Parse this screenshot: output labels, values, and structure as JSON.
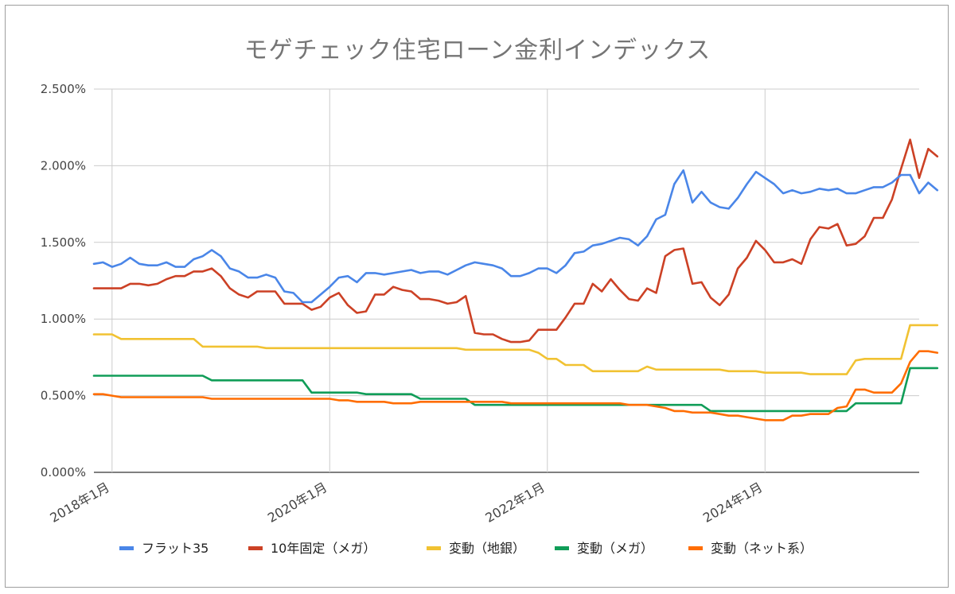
{
  "chart_data": {
    "type": "line",
    "title": "モゲチェック住宅ローン金利インデックス",
    "xlabel": "",
    "ylabel": "",
    "x_start": "2017-11",
    "x_end": "2025-06",
    "ylim": [
      0,
      2.5
    ],
    "yticks": [
      "0.000%",
      "0.500%",
      "1.000%",
      "1.500%",
      "2.000%",
      "2.500%"
    ],
    "xticks": [
      {
        "label": "2018年1月",
        "date": "2018-01"
      },
      {
        "label": "2020年1月",
        "date": "2020-01"
      },
      {
        "label": "2022年1月",
        "date": "2022-01"
      },
      {
        "label": "2024年1月",
        "date": "2024-01"
      }
    ],
    "grid": true,
    "legend_position": "bottom",
    "series": [
      {
        "name": "フラット35",
        "color": "#4a86e8",
        "values": [
          1.36,
          1.37,
          1.34,
          1.36,
          1.4,
          1.36,
          1.35,
          1.35,
          1.37,
          1.34,
          1.34,
          1.39,
          1.41,
          1.45,
          1.41,
          1.33,
          1.31,
          1.27,
          1.27,
          1.29,
          1.27,
          1.18,
          1.17,
          1.11,
          1.11,
          1.16,
          1.21,
          1.27,
          1.28,
          1.24,
          1.3,
          1.3,
          1.29,
          1.3,
          1.31,
          1.32,
          1.3,
          1.31,
          1.31,
          1.29,
          1.32,
          1.35,
          1.37,
          1.36,
          1.35,
          1.33,
          1.28,
          1.28,
          1.3,
          1.33,
          1.33,
          1.3,
          1.35,
          1.43,
          1.44,
          1.48,
          1.49,
          1.51,
          1.53,
          1.52,
          1.48,
          1.54,
          1.65,
          1.68,
          1.88,
          1.97,
          1.76,
          1.83,
          1.76,
          1.73,
          1.72,
          1.79,
          1.88,
          1.96,
          1.92,
          1.88,
          1.82,
          1.84,
          1.82,
          1.83,
          1.85,
          1.84,
          1.85,
          1.82,
          1.82,
          1.84,
          1.86,
          1.86,
          1.89,
          1.94,
          1.94,
          1.82,
          1.89,
          1.84
        ]
      },
      {
        "name": "10年固定（メガ）",
        "color": "#cc4125",
        "values": [
          1.2,
          1.2,
          1.2,
          1.2,
          1.23,
          1.23,
          1.22,
          1.23,
          1.26,
          1.28,
          1.28,
          1.31,
          1.31,
          1.33,
          1.28,
          1.2,
          1.16,
          1.14,
          1.18,
          1.18,
          1.18,
          1.1,
          1.1,
          1.1,
          1.06,
          1.08,
          1.14,
          1.17,
          1.09,
          1.04,
          1.05,
          1.16,
          1.16,
          1.21,
          1.19,
          1.18,
          1.13,
          1.13,
          1.12,
          1.1,
          1.11,
          1.15,
          0.91,
          0.9,
          0.9,
          0.87,
          0.85,
          0.85,
          0.86,
          0.93,
          0.93,
          0.93,
          1.01,
          1.1,
          1.1,
          1.23,
          1.18,
          1.26,
          1.19,
          1.13,
          1.12,
          1.2,
          1.17,
          1.41,
          1.45,
          1.46,
          1.23,
          1.24,
          1.14,
          1.09,
          1.16,
          1.33,
          1.4,
          1.51,
          1.45,
          1.37,
          1.37,
          1.39,
          1.36,
          1.52,
          1.6,
          1.59,
          1.62,
          1.48,
          1.49,
          1.54,
          1.66,
          1.66,
          1.78,
          1.98,
          2.17,
          1.92,
          2.11,
          2.06
        ]
      },
      {
        "name": "変動（地銀）",
        "color": "#f1c232",
        "values": [
          0.9,
          0.9,
          0.9,
          0.87,
          0.87,
          0.87,
          0.87,
          0.87,
          0.87,
          0.87,
          0.87,
          0.87,
          0.82,
          0.82,
          0.82,
          0.82,
          0.82,
          0.82,
          0.82,
          0.81,
          0.81,
          0.81,
          0.81,
          0.81,
          0.81,
          0.81,
          0.81,
          0.81,
          0.81,
          0.81,
          0.81,
          0.81,
          0.81,
          0.81,
          0.81,
          0.81,
          0.81,
          0.81,
          0.81,
          0.81,
          0.81,
          0.8,
          0.8,
          0.8,
          0.8,
          0.8,
          0.8,
          0.8,
          0.8,
          0.78,
          0.74,
          0.74,
          0.7,
          0.7,
          0.7,
          0.66,
          0.66,
          0.66,
          0.66,
          0.66,
          0.66,
          0.69,
          0.67,
          0.67,
          0.67,
          0.67,
          0.67,
          0.67,
          0.67,
          0.67,
          0.66,
          0.66,
          0.66,
          0.66,
          0.65,
          0.65,
          0.65,
          0.65,
          0.65,
          0.64,
          0.64,
          0.64,
          0.64,
          0.64,
          0.73,
          0.74,
          0.74,
          0.74,
          0.74,
          0.74,
          0.96,
          0.96,
          0.96,
          0.96
        ]
      },
      {
        "name": "変動（メガ）",
        "color": "#109d58",
        "values": [
          0.63,
          0.63,
          0.63,
          0.63,
          0.63,
          0.63,
          0.63,
          0.63,
          0.63,
          0.63,
          0.63,
          0.63,
          0.63,
          0.6,
          0.6,
          0.6,
          0.6,
          0.6,
          0.6,
          0.6,
          0.6,
          0.6,
          0.6,
          0.6,
          0.52,
          0.52,
          0.52,
          0.52,
          0.52,
          0.52,
          0.51,
          0.51,
          0.51,
          0.51,
          0.51,
          0.51,
          0.48,
          0.48,
          0.48,
          0.48,
          0.48,
          0.48,
          0.44,
          0.44,
          0.44,
          0.44,
          0.44,
          0.44,
          0.44,
          0.44,
          0.44,
          0.44,
          0.44,
          0.44,
          0.44,
          0.44,
          0.44,
          0.44,
          0.44,
          0.44,
          0.44,
          0.44,
          0.44,
          0.44,
          0.44,
          0.44,
          0.44,
          0.44,
          0.4,
          0.4,
          0.4,
          0.4,
          0.4,
          0.4,
          0.4,
          0.4,
          0.4,
          0.4,
          0.4,
          0.4,
          0.4,
          0.4,
          0.4,
          0.4,
          0.45,
          0.45,
          0.45,
          0.45,
          0.45,
          0.45,
          0.68,
          0.68,
          0.68,
          0.68
        ]
      },
      {
        "name": "変動（ネット系）",
        "color": "#ff6d01",
        "values": [
          0.51,
          0.51,
          0.5,
          0.49,
          0.49,
          0.49,
          0.49,
          0.49,
          0.49,
          0.49,
          0.49,
          0.49,
          0.49,
          0.48,
          0.48,
          0.48,
          0.48,
          0.48,
          0.48,
          0.48,
          0.48,
          0.48,
          0.48,
          0.48,
          0.48,
          0.48,
          0.48,
          0.47,
          0.47,
          0.46,
          0.46,
          0.46,
          0.46,
          0.45,
          0.45,
          0.45,
          0.46,
          0.46,
          0.46,
          0.46,
          0.46,
          0.46,
          0.46,
          0.46,
          0.46,
          0.46,
          0.45,
          0.45,
          0.45,
          0.45,
          0.45,
          0.45,
          0.45,
          0.45,
          0.45,
          0.45,
          0.45,
          0.45,
          0.45,
          0.44,
          0.44,
          0.44,
          0.43,
          0.42,
          0.4,
          0.4,
          0.39,
          0.39,
          0.39,
          0.38,
          0.37,
          0.37,
          0.36,
          0.35,
          0.34,
          0.34,
          0.34,
          0.37,
          0.37,
          0.38,
          0.38,
          0.38,
          0.42,
          0.43,
          0.54,
          0.54,
          0.52,
          0.52,
          0.52,
          0.58,
          0.72,
          0.79,
          0.79,
          0.78
        ]
      }
    ]
  }
}
